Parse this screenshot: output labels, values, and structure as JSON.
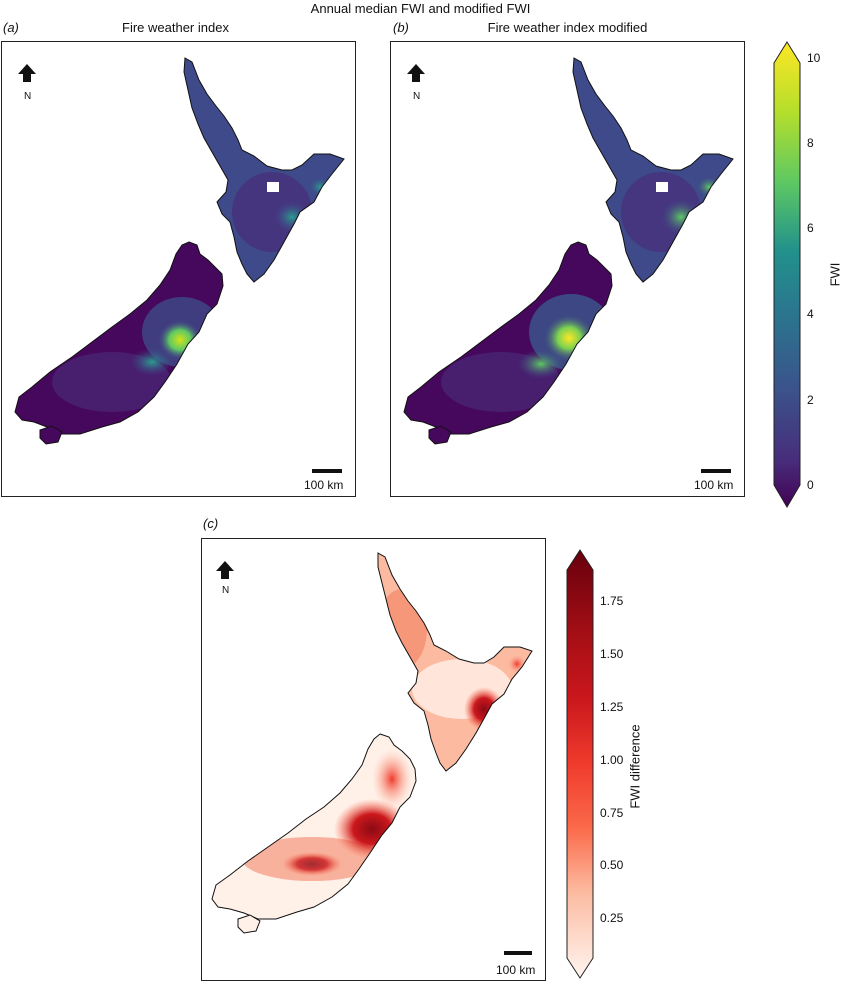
{
  "figure": {
    "title": "Annual median FWI and modified FWI"
  },
  "panels": [
    {
      "letter": "(a)",
      "title": "Fire weather index",
      "scale_bar": "100 km",
      "north": "N"
    },
    {
      "letter": "(b)",
      "title": "Fire weather index modified",
      "scale_bar": "100 km",
      "north": "N"
    },
    {
      "letter": "(c)",
      "title": "",
      "scale_bar": "100 km",
      "north": "N"
    }
  ],
  "colorbars": {
    "fwi": {
      "label": "FWI",
      "ticks": [
        "10",
        "8",
        "6",
        "4",
        "2",
        "0"
      ],
      "range": [
        0,
        10
      ],
      "colormap": "viridis",
      "colors": [
        "#fde725",
        "#5ec962",
        "#21918c",
        "#3b528b",
        "#440154"
      ]
    },
    "diff": {
      "label": "FWI difference",
      "ticks": [
        "1.75",
        "1.50",
        "1.25",
        "1.00",
        "0.75",
        "0.50",
        "0.25"
      ],
      "range": [
        0.1,
        1.9
      ],
      "colormap": "Reds",
      "colors": [
        "#67000d",
        "#cb181d",
        "#fb6a4a",
        "#fcbba1",
        "#fff5f0"
      ]
    }
  },
  "map_colors": {
    "low_fwi": "#46085c",
    "mid_fwi": "#3e4a89",
    "high_fwi": "#b5de2b",
    "diff_low": "#fff0e8",
    "diff_mid": "#f4876a",
    "diff_high": "#8b0a14",
    "coast": "#111111"
  }
}
